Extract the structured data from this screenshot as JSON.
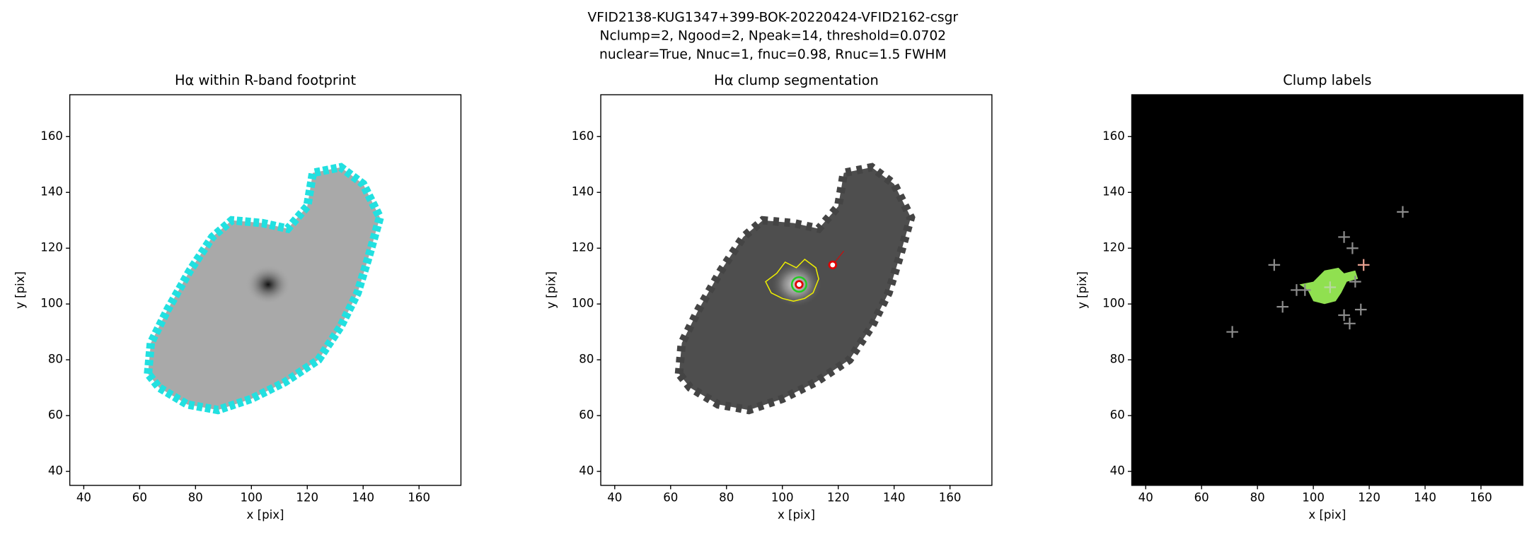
{
  "figure_title": [
    "VFID2138-KUG1347+399-BOK-20220424-VFID2162-csgr",
    "Nclump=2, Ngood=2, Npeak=14, threshold=0.0702",
    "nuclear=True, Nnuc=1, fnuc=0.98, Rnuc=1.5 FWHM"
  ],
  "chart_data": [
    {
      "type": "image",
      "title": "Hα within R-band footprint",
      "xlabel": "x [pix]",
      "ylabel": "y [pix]",
      "xlim": [
        35,
        175
      ],
      "ylim": [
        35,
        175
      ],
      "xticks": [
        40,
        60,
        80,
        100,
        120,
        140,
        160
      ],
      "yticks": [
        40,
        60,
        80,
        100,
        120,
        140,
        160
      ]
    },
    {
      "type": "image",
      "title": "Hα clump segmentation",
      "xlabel": "x [pix]",
      "ylabel": "y [pix]",
      "xlim": [
        35,
        175
      ],
      "ylim": [
        35,
        175
      ],
      "xticks": [
        40,
        60,
        80,
        100,
        120,
        140,
        160
      ],
      "yticks": [
        40,
        60,
        80,
        100,
        120,
        140,
        160
      ],
      "peaks": {
        "x": [
          106,
          118
        ],
        "y": [
          107,
          114
        ],
        "colors": [
          "#e00000",
          "#e00000"
        ]
      }
    },
    {
      "type": "image",
      "title": "Clump labels",
      "xlabel": "x [pix]",
      "ylabel": "y [pix]",
      "xlim": [
        35,
        175
      ],
      "ylim": [
        35,
        175
      ],
      "xticks": [
        40,
        60,
        80,
        100,
        120,
        140,
        160
      ],
      "yticks": [
        40,
        60,
        80,
        100,
        120,
        140,
        160
      ],
      "peaks": {
        "x": [
          71,
          86,
          89,
          94,
          97,
          106,
          111,
          114,
          115,
          111,
          113,
          117,
          132,
          118
        ],
        "y": [
          90,
          114,
          99,
          105,
          105,
          106,
          124,
          120,
          108,
          96,
          93,
          98,
          133,
          114
        ],
        "colors": [
          "#8c8c8c",
          "#8c8c8c",
          "#8c8c8c",
          "#8c8c8c",
          "#8c8c8c",
          "#b8d8a0",
          "#8c8c8c",
          "#8c8c8c",
          "#8c8c8c",
          "#8c8c8c",
          "#8c8c8c",
          "#8c8c8c",
          "#8c8c8c",
          "#e8a090"
        ]
      }
    }
  ]
}
